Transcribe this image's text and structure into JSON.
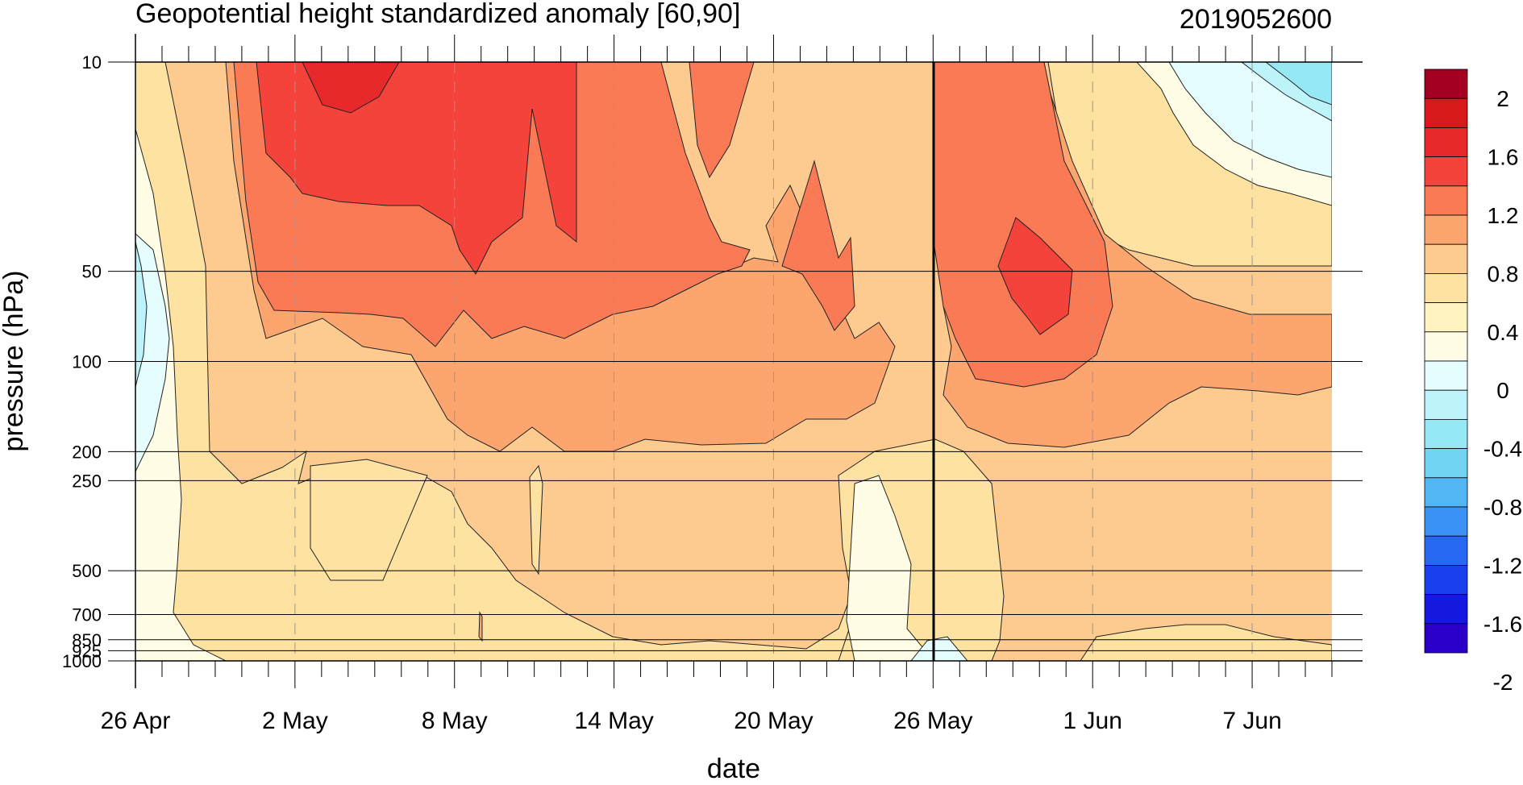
{
  "chart_data": {
    "type": "contour",
    "title": "Geopotential height standardized anomaly [60,90]",
    "init_label": "2019052600",
    "xlabel": "date",
    "ylabel": "pressure (hPa)",
    "x_ticks": [
      "26 Apr",
      "2 May",
      "8 May",
      "14 May",
      "20 May",
      "26 May",
      "1 Jun",
      "7 Jun"
    ],
    "y_ticks": [
      "10",
      "50",
      "100",
      "200",
      "250",
      "500",
      "700",
      "850",
      "925",
      "1000"
    ],
    "colorbar_labels": [
      "2",
      "1.6",
      "1.2",
      "0.8",
      "0.4",
      "0",
      "-0.4",
      "-0.8",
      "-1.2",
      "-1.6",
      "-2"
    ],
    "colorbar_colors": [
      "#a50021",
      "#d7191c",
      "#e8292c",
      "#f4433a",
      "#fb7a56",
      "#fca56f",
      "#fdcb90",
      "#fde2a1",
      "#fff3c0",
      "#fffde6",
      "#e6fdff",
      "#bdf4fb",
      "#97e8f5",
      "#72d4f3",
      "#52b6f5",
      "#3a92f5",
      "#2668f2",
      "#1940ec",
      "#1418e0",
      "#2a00c8"
    ],
    "levels": [
      -2.0,
      -1.8,
      -1.6,
      -1.4,
      -1.2,
      -1.0,
      -0.8,
      -0.6,
      -0.4,
      -0.2,
      0,
      0.2,
      0.4,
      0.6,
      0.8,
      1.0,
      1.2,
      1.4,
      1.6,
      1.8,
      2.0
    ],
    "analysis_date": "26 May",
    "regions": [
      {
        "level": 0.4,
        "color": "#fde2a1"
      },
      {
        "level": 0.6,
        "color": "#fdcb90"
      },
      {
        "level": 0.8,
        "color": "#fca56f"
      },
      {
        "level": 1.2,
        "color": "#fb7a56"
      },
      {
        "level": 1.6,
        "color": "#f4433a"
      },
      {
        "level": 1.8,
        "color": "#e8292c"
      },
      {
        "level": 0.0,
        "color": "#fffde6"
      },
      {
        "level": -0.2,
        "color": "#e6fdff"
      },
      {
        "level": -0.4,
        "color": "#bdf4fb"
      },
      {
        "level": -0.6,
        "color": "#97e8f5"
      }
    ]
  }
}
